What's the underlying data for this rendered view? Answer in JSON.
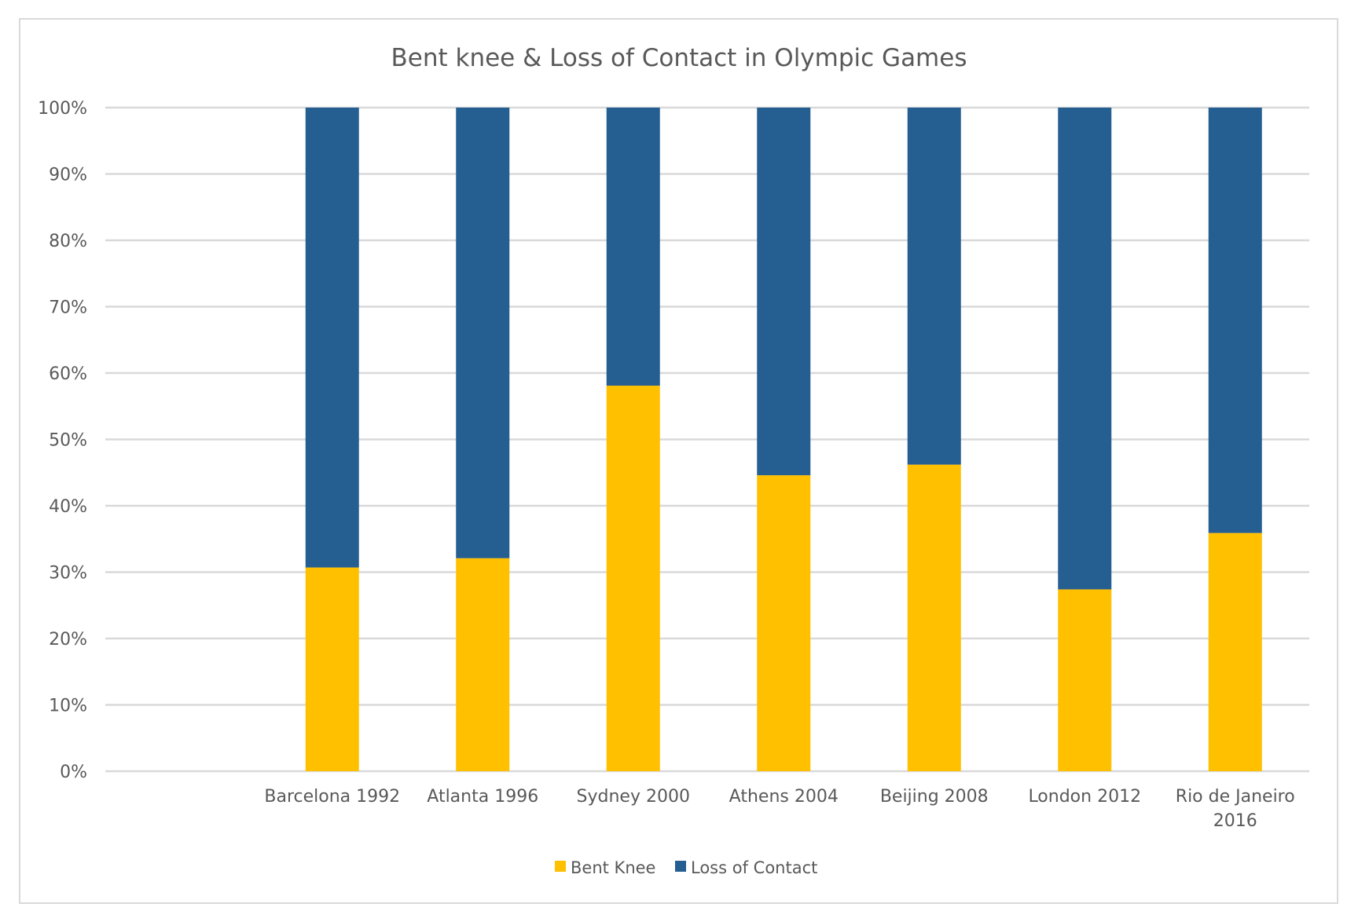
{
  "chart_data": {
    "type": "bar",
    "stacked": true,
    "title": "Bent knee & Loss of Contact in Olympic Games",
    "categories": [
      [
        "Barcelona 1992"
      ],
      [
        "Atlanta 1996"
      ],
      [
        "Sydney 2000"
      ],
      [
        "Athens 2004"
      ],
      [
        "Beijing 2008"
      ],
      [
        "London 2012"
      ],
      [
        "Rio de Janeiro",
        "2016"
      ]
    ],
    "series": [
      {
        "name": "Bent Knee",
        "color": "#FFC000",
        "values": [
          30.7,
          32.1,
          58.1,
          44.6,
          46.2,
          27.4,
          35.9
        ]
      },
      {
        "name": "Loss of Contact",
        "color": "#255E91",
        "values": [
          69.3,
          67.9,
          41.9,
          55.4,
          53.8,
          72.6,
          64.1
        ]
      }
    ],
    "ylim": [
      0,
      100
    ],
    "yticks": [
      "0%",
      "10%",
      "20%",
      "30%",
      "40%",
      "50%",
      "60%",
      "70%",
      "80%",
      "90%",
      "100%"
    ],
    "grid": true,
    "gridColor": "#d9d9d9",
    "legend": "bottom",
    "xlabel": "",
    "ylabel": ""
  }
}
